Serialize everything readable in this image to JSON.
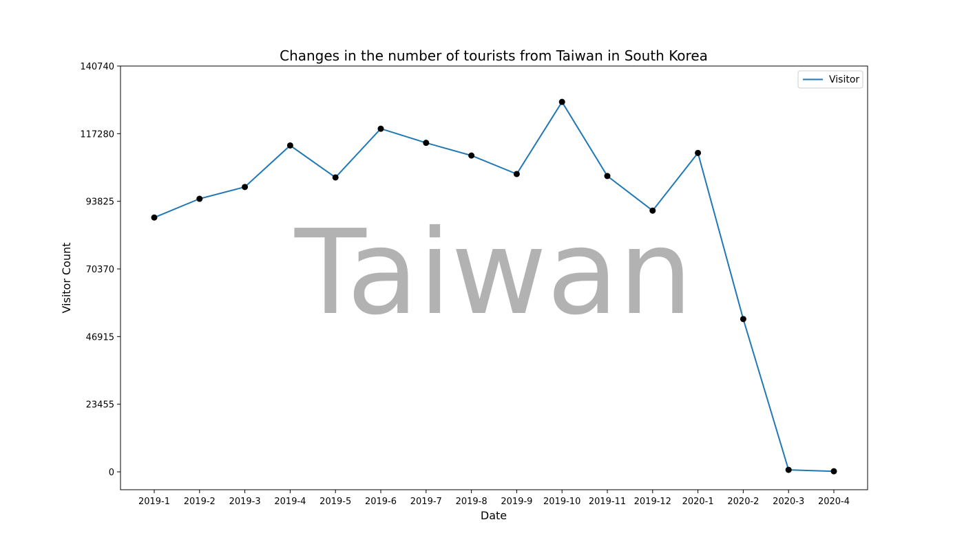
{
  "chart_data": {
    "type": "line",
    "title": "Changes in the number of tourists from Taiwan in South Korea",
    "xlabel": "Date",
    "ylabel": "Visitor Count",
    "watermark": "Taiwan",
    "categories": [
      "2019-1",
      "2019-2",
      "2019-3",
      "2019-4",
      "2019-5",
      "2019-6",
      "2019-7",
      "2019-8",
      "2019-9",
      "2019-10",
      "2019-11",
      "2019-12",
      "2020-1",
      "2020-2",
      "2020-3",
      "2020-4"
    ],
    "series": [
      {
        "name": "Visitor",
        "values": [
          88200,
          94700,
          98800,
          113200,
          102100,
          119000,
          114100,
          109700,
          103300,
          128300,
          102600,
          90600,
          110600,
          53000,
          700,
          200
        ]
      }
    ],
    "yticks": [
      "0",
      "23455",
      "46915",
      "70370",
      "93825",
      "117280",
      "140740"
    ],
    "ytick_values": [
      0,
      23455,
      46915,
      70370,
      93825,
      117280,
      140740
    ],
    "ylim": [
      -6300,
      140740
    ],
    "legend_position": "upper-right",
    "grid": false,
    "colors": {
      "line": "#1f77b4",
      "marker": "#000000",
      "watermark": "#ff0000",
      "axis": "#000000"
    }
  }
}
